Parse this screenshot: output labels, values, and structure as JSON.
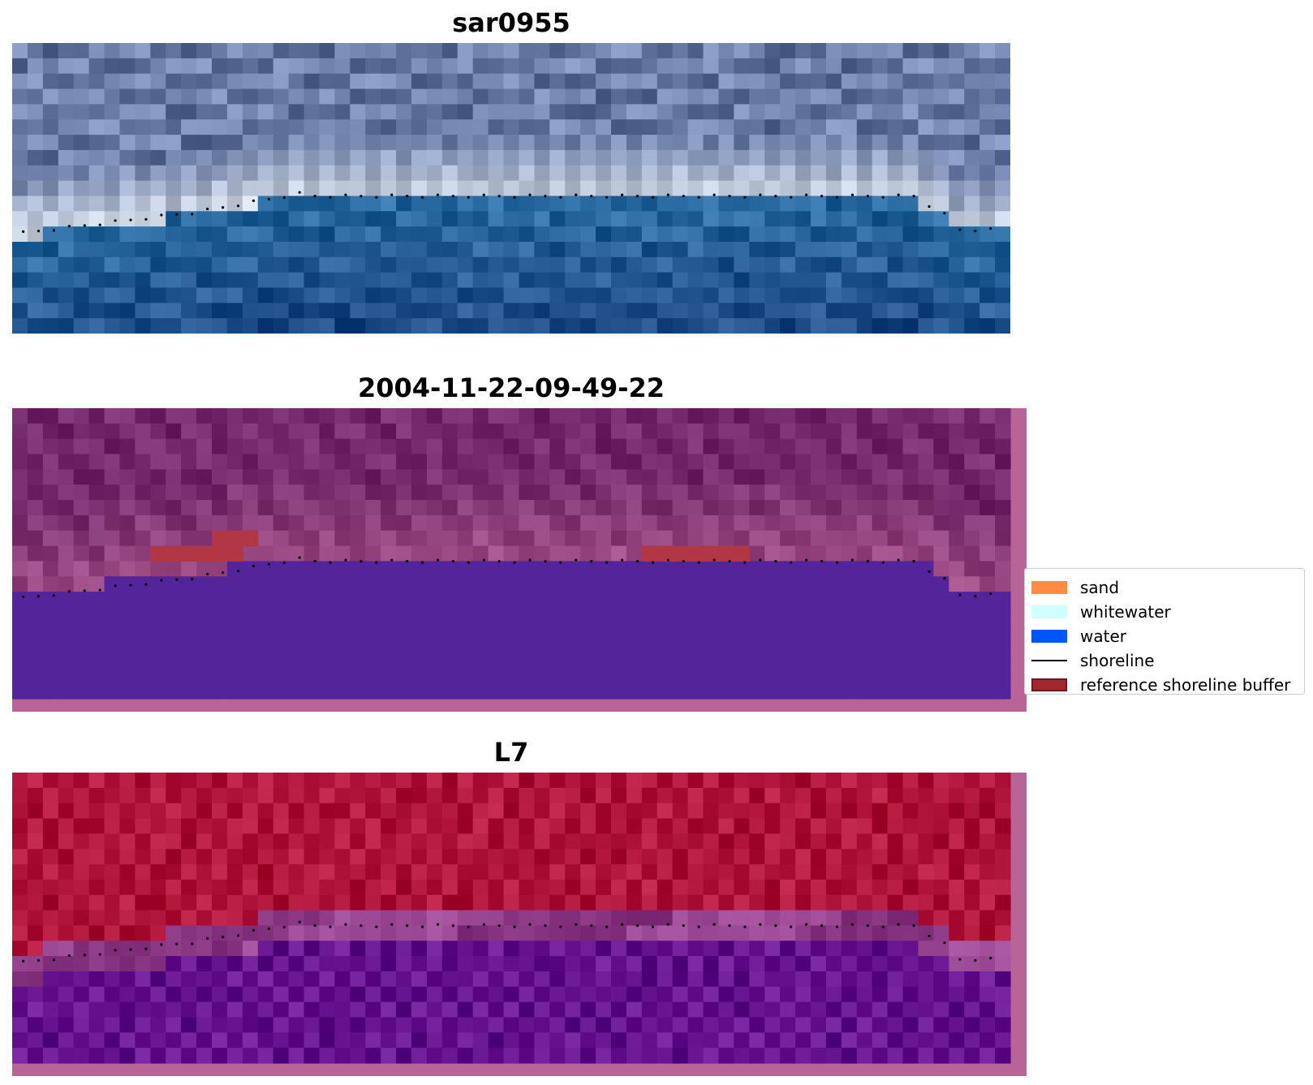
{
  "panels": [
    {
      "title": "sar0955",
      "kind": "rgb"
    },
    {
      "title": "2004-11-22-09-49-22",
      "kind": "classified"
    },
    {
      "title": "L7",
      "kind": "index"
    }
  ],
  "legend": {
    "items": [
      {
        "label": "sand",
        "color": "#ff8c40",
        "type": "patch"
      },
      {
        "label": "whitewater",
        "color": "#cfffff",
        "type": "patch"
      },
      {
        "label": "water",
        "color": "#0055ff",
        "type": "patch"
      },
      {
        "label": "shoreline",
        "color": "#000000",
        "type": "line"
      },
      {
        "label": "reference shoreline buffer",
        "color": "#a0282e",
        "type": "patch-edged"
      }
    ]
  },
  "colors": {
    "sar_sky": "#7d8fb8",
    "sar_surf": "#dfe8f3",
    "sar_water": "#3577ad",
    "classified_land": "#7e3578",
    "classified_water": "#53249a",
    "classified_border": "#b86497",
    "buffer": "#b13745",
    "index_land": "#bb1f46",
    "index_water": "#701e9a",
    "index_border": "#b86497",
    "shoreline_points": "#000000"
  }
}
